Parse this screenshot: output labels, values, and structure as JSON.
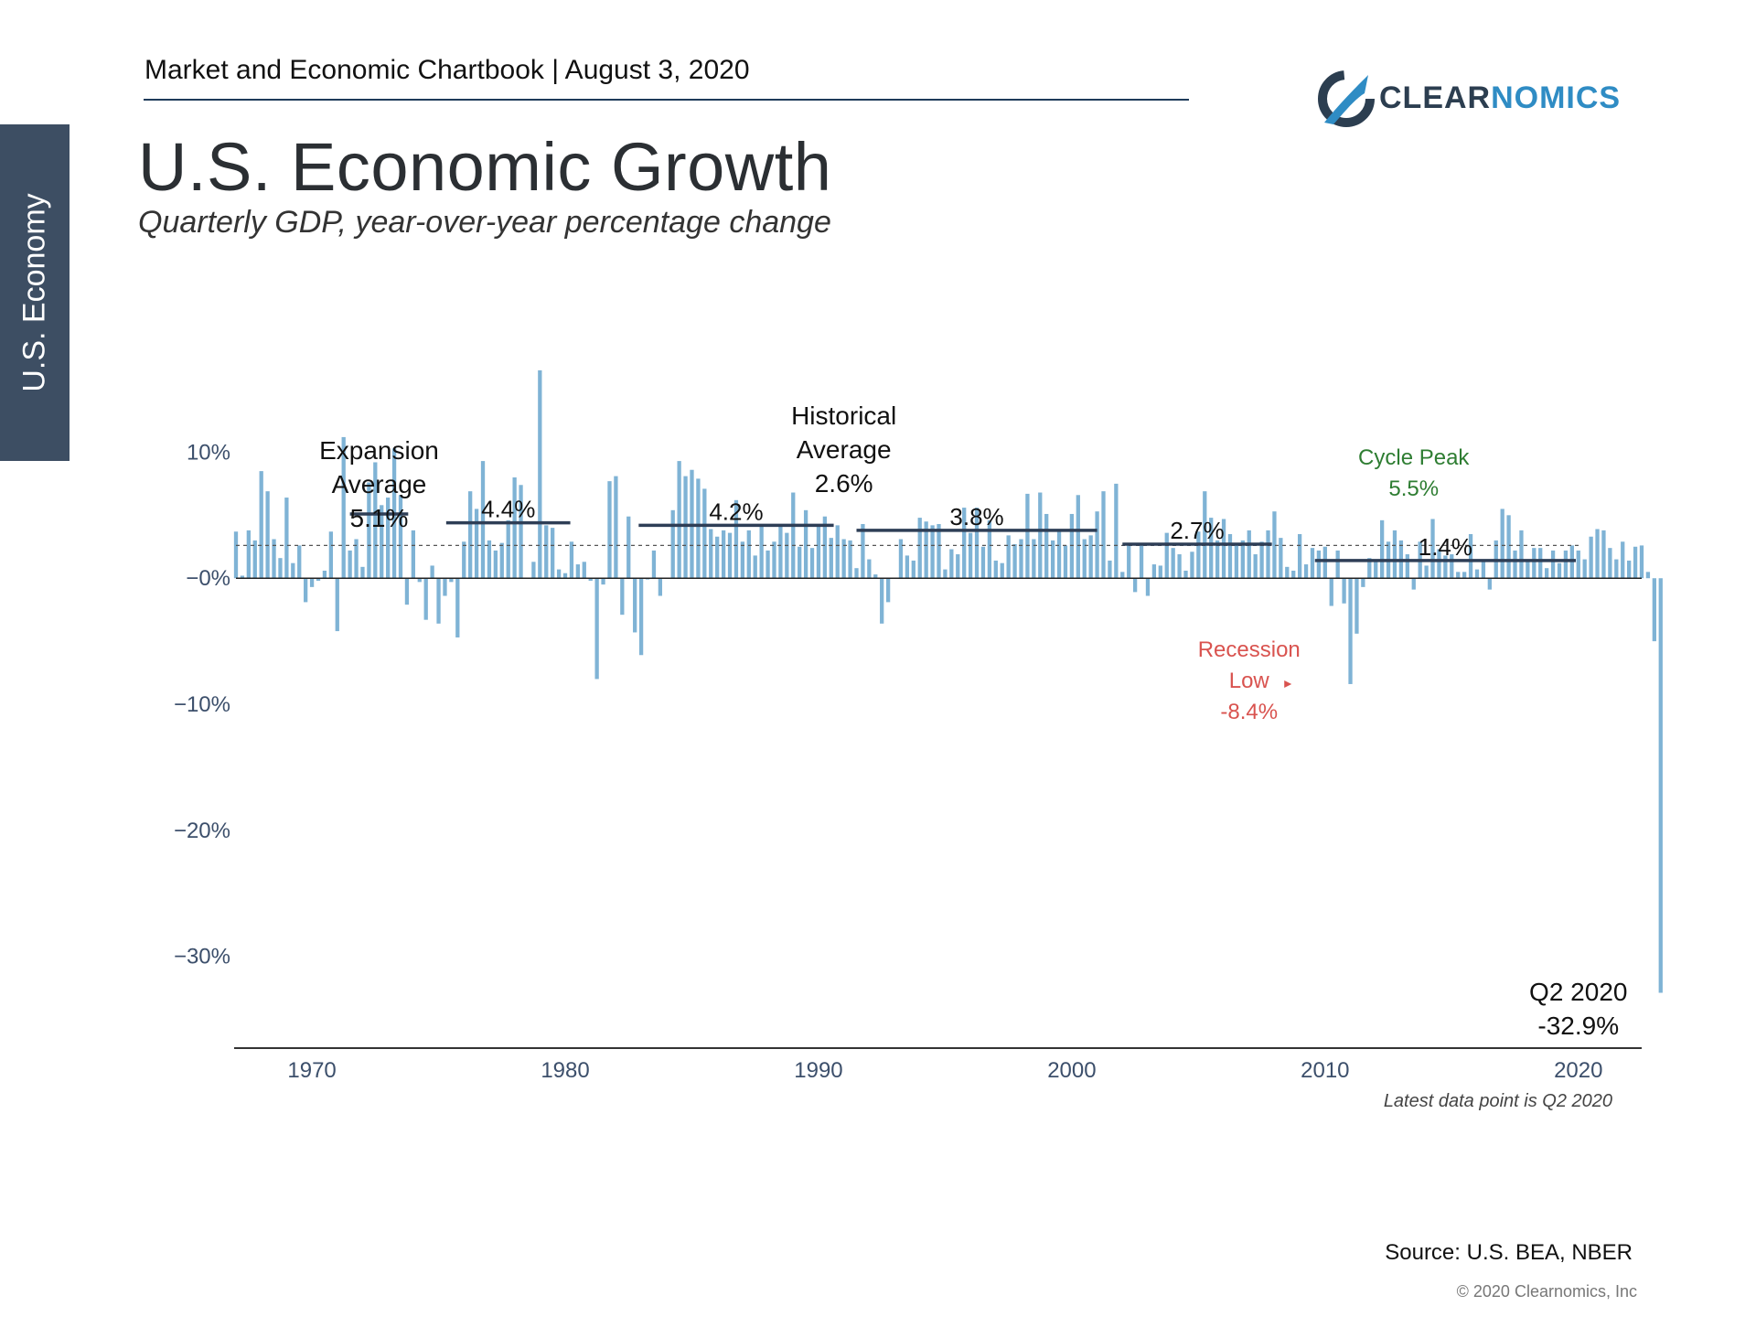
{
  "header": {
    "text": "Market and Economic Chartbook | August 3, 2020"
  },
  "side_tab": {
    "label": "U.S. Economy"
  },
  "title": "U.S. Economic Growth",
  "subtitle": "Quarterly GDP, year-over-year percentage change",
  "logo": {
    "part1": "CLEAR",
    "part2": "NOMICS"
  },
  "note": "Latest data point is Q2 2020",
  "source": "Source: U.S. BEA, NBER",
  "copyright": "© 2020 Clearnomics, Inc",
  "colors": {
    "bar": "#7fb3d5",
    "avg": "#2e3e56",
    "green": "#2e7d32",
    "red": "#d9534f"
  },
  "chart_data": {
    "type": "bar",
    "title": "U.S. Economic Growth",
    "ylabel": "Quarterly GDP, year-over-year percentage change",
    "xlim": [
      1967.0,
      2022.5
    ],
    "ylim": [
      -37,
      17
    ],
    "y_ticks": [
      10,
      0,
      -10,
      -20,
      -30
    ],
    "y_tick_labels": [
      "10%",
      "−0%",
      "−10%",
      "−20%",
      "−30%"
    ],
    "x_ticks": [
      1970,
      1980,
      1990,
      2000,
      2010,
      2020
    ],
    "x_tick_labels": [
      "1970",
      "1980",
      "1990",
      "2000",
      "2010",
      "2020"
    ],
    "historical_average": 2.6,
    "series": [
      {
        "name": "Quarterly GDP YoY %",
        "start": 1967.0,
        "step": 0.25,
        "values": [
          3.7,
          0.2,
          3.8,
          3.0,
          8.5,
          6.9,
          3.1,
          1.6,
          6.4,
          1.2,
          2.6,
          -1.9,
          -0.7,
          -0.2,
          0.6,
          3.7,
          -4.2,
          11.2,
          2.2,
          3.1,
          0.9,
          7.6,
          9.2,
          5.8,
          6.4,
          10.3,
          6.6,
          -2.1,
          3.8,
          -0.3,
          -3.3,
          1.0,
          -3.6,
          -1.4,
          -0.3,
          -4.7,
          2.9,
          6.9,
          5.5,
          9.3,
          3.0,
          2.2,
          2.8,
          4.6,
          8.0,
          7.4,
          0.0,
          1.3,
          16.5,
          4.2,
          4.0,
          0.7,
          0.4,
          2.9,
          1.1,
          1.3,
          -0.2,
          -8.0,
          -0.5,
          7.7,
          8.1,
          -2.9,
          4.9,
          -4.3,
          -6.1,
          -0.1,
          2.2,
          -1.4,
          0.0,
          5.4,
          9.3,
          8.1,
          8.6,
          7.9,
          7.1,
          3.9,
          3.3,
          3.8,
          3.6,
          6.2,
          2.9,
          3.8,
          1.8,
          4.1,
          2.2,
          2.9,
          4.3,
          3.6,
          6.8,
          2.5,
          5.4,
          2.4,
          4.3,
          4.9,
          3.2,
          4.2,
          3.1,
          3.0,
          0.8,
          4.3,
          1.5,
          0.3,
          -3.6,
          -1.9,
          0.0,
          3.1,
          1.8,
          1.4,
          4.8,
          4.5,
          4.2,
          4.3,
          0.7,
          2.3,
          1.9,
          5.6,
          3.6,
          5.6,
          2.5,
          4.6,
          1.4,
          1.2,
          3.4,
          2.7,
          3.1,
          6.7,
          3.1,
          6.8,
          5.1,
          3.0,
          3.8,
          2.6,
          5.1,
          6.6,
          3.1,
          3.4,
          5.3,
          6.9,
          1.4,
          7.5,
          0.5,
          2.7,
          -1.1,
          2.6,
          -1.4,
          1.1,
          1.0,
          3.6,
          2.4,
          1.9,
          0.6,
          2.1,
          3.7,
          6.9,
          4.8,
          3.0,
          4.7,
          3.5,
          2.7,
          3.0,
          3.8,
          1.9,
          2.9,
          3.8,
          5.3,
          3.2,
          0.9,
          0.6,
          3.5,
          1.1,
          2.4,
          2.2,
          2.5,
          -2.2,
          2.2,
          -2.0,
          -8.4,
          -4.4,
          -0.7,
          1.6,
          1.5,
          4.6,
          2.9,
          3.8,
          3.0,
          1.9,
          -0.9,
          2.9,
          1.0,
          4.7,
          2.3,
          1.8,
          1.9,
          0.5,
          0.5,
          3.5,
          0.7,
          1.4,
          -0.9,
          3.0,
          5.5,
          5.0,
          2.2,
          3.8,
          1.4,
          2.4,
          2.4,
          0.8,
          2.2,
          1.2,
          2.2,
          2.6,
          2.2,
          1.5,
          3.3,
          3.9,
          3.8,
          2.4,
          1.5,
          2.9,
          1.4,
          2.5,
          2.6,
          0.5,
          -5.0,
          -32.9
        ]
      }
    ],
    "expansion_averages": [
      {
        "label": "5.1%",
        "value": 5.1,
        "start": 1971.5,
        "end": 1973.8
      },
      {
        "label": "4.4%",
        "value": 4.4,
        "start": 1975.3,
        "end": 1980.2
      },
      {
        "label": "4.2%",
        "value": 4.2,
        "start": 1982.9,
        "end": 1990.6
      },
      {
        "label": "3.8%",
        "value": 3.8,
        "start": 1991.5,
        "end": 2001.0
      },
      {
        "label": "2.7%",
        "value": 2.7,
        "start": 2002.0,
        "end": 2007.9
      },
      {
        "label": "1.4%",
        "value": 1.4,
        "start": 2009.6,
        "end": 2019.9
      }
    ],
    "annotations": {
      "expansion": [
        "Expansion",
        "Average",
        "5.1%"
      ],
      "historical": [
        "Historical",
        "Average",
        "2.6%"
      ],
      "cycle_peak": [
        "Cycle Peak",
        "5.5%"
      ],
      "recession_low": [
        "Recession",
        "Low",
        "-8.4%"
      ],
      "latest": [
        "Q2 2020",
        "-32.9%"
      ]
    }
  }
}
